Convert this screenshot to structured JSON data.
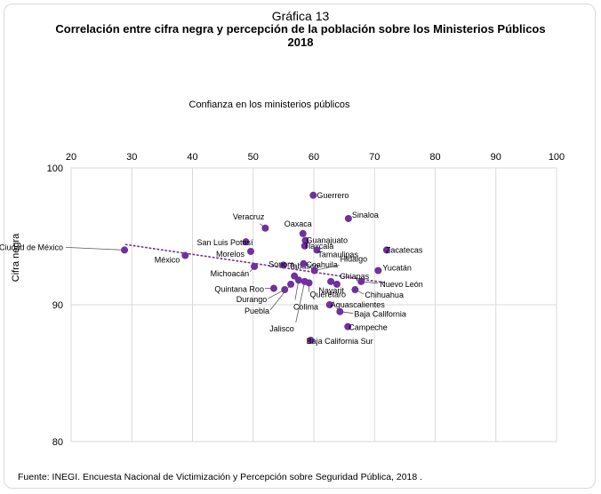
{
  "chart_data": {
    "type": "scatter",
    "figure_number": "Gráfica 13",
    "title_line1": "Correlación entre cifra negra y percepción de la población sobre los Ministerios Públicos",
    "title_line2": "2018",
    "xlabel": "Confianza en los ministerios públicos",
    "ylabel": "Cifra negra",
    "xlim": [
      20,
      100
    ],
    "ylim": [
      80,
      100
    ],
    "xticks": [
      "20",
      "30",
      "40",
      "50",
      "60",
      "70",
      "80",
      "90",
      "100"
    ],
    "yticks": [
      "80",
      "90",
      "100"
    ],
    "x_axis_position": "top",
    "trendline": {
      "style": "dotted",
      "from": [
        29,
        94.4
      ],
      "to": [
        72,
        91.6
      ]
    },
    "marker_color": "#7030A0",
    "points": [
      {
        "label": "Ciudad de México",
        "x": 28.8,
        "y": 94.0
      },
      {
        "label": "México",
        "x": 38.8,
        "y": 93.6
      },
      {
        "label": "Veracruz",
        "x": 52.0,
        "y": 95.6
      },
      {
        "label": "San Luis Potosí",
        "x": 48.8,
        "y": 94.6
      },
      {
        "label": "Morelos",
        "x": 49.6,
        "y": 93.9
      },
      {
        "label": "Michoacán",
        "x": 50.2,
        "y": 92.8
      },
      {
        "label": "Tabasco",
        "x": 55.0,
        "y": 92.9
      },
      {
        "label": "Sonora",
        "x": 56.8,
        "y": 92.1
      },
      {
        "label": "Quintana Roo",
        "x": 53.4,
        "y": 91.2
      },
      {
        "label": "Durango",
        "x": 55.2,
        "y": 91.1
      },
      {
        "label": "Puebla",
        "x": 56.2,
        "y": 91.5
      },
      {
        "label": "Colima",
        "x": 57.5,
        "y": 91.8
      },
      {
        "label": "Jalisco",
        "x": 58.5,
        "y": 91.7
      },
      {
        "label": "Querétaro",
        "x": 59.2,
        "y": 91.6
      },
      {
        "label": "Guerrero",
        "x": 59.9,
        "y": 98.0
      },
      {
        "label": "Oaxaca",
        "x": 58.2,
        "y": 95.2
      },
      {
        "label": "Guanajuato",
        "x": 58.6,
        "y": 94.7
      },
      {
        "label": "Tlaxcala",
        "x": 58.5,
        "y": 94.3
      },
      {
        "label": "Tamaulipas",
        "x": 60.5,
        "y": 94.0
      },
      {
        "label": "Coahuila",
        "x": 58.3,
        "y": 93.0
      },
      {
        "label": "Hidalgo",
        "x": 60.1,
        "y": 92.5
      },
      {
        "label": "Sinaloa",
        "x": 65.7,
        "y": 96.3
      },
      {
        "label": "Zacatecas",
        "x": 72.0,
        "y": 94.0
      },
      {
        "label": "Yucatán",
        "x": 70.6,
        "y": 92.5
      },
      {
        "label": "Nuevo León",
        "x": 67.8,
        "y": 91.7
      },
      {
        "label": "Chiapas",
        "x": 62.8,
        "y": 91.7
      },
      {
        "label": "Nayarit",
        "x": 63.8,
        "y": 91.5
      },
      {
        "label": "Chihuahua",
        "x": 66.8,
        "y": 91.1
      },
      {
        "label": "Aguascalientes",
        "x": 62.6,
        "y": 90.0
      },
      {
        "label": "Baja California",
        "x": 64.3,
        "y": 89.5
      },
      {
        "label": "Campeche",
        "x": 65.6,
        "y": 88.4
      },
      {
        "label": "Baja California Sur",
        "x": 59.5,
        "y": 87.4
      }
    ],
    "source": "Fuente: INEGI. Encuesta Nacional de Victimización y Percepción sobre Seguridad Pública, 2018 ."
  }
}
